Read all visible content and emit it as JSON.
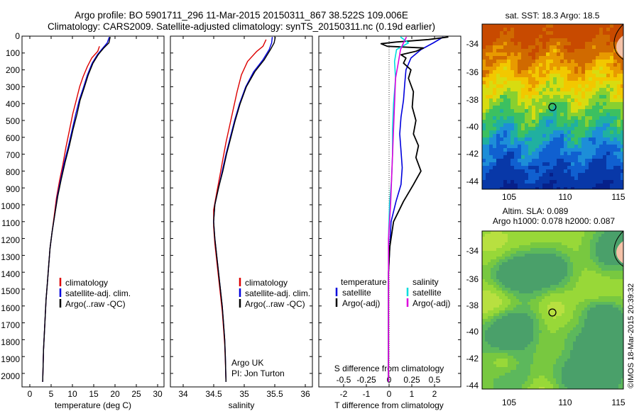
{
  "title": {
    "line1": "Argo profile: BO 5901711_296 11-Mar-2015 20150311_867 38.522S 109.006E",
    "line2": "Climatology: CARS2009. Satellite-adjusted climatology: synTS_20150311.nc (0.19d earlier)"
  },
  "depth_ticks": [
    "0",
    "100",
    "200",
    "300",
    "400",
    "500",
    "600",
    "700",
    "800",
    "900",
    "1000",
    "1100",
    "1200",
    "1300",
    "1400",
    "1500",
    "1600",
    "1700",
    "1800",
    "1900",
    "2000"
  ],
  "panels": {
    "temperature": {
      "xlabel": "temperature (deg C)",
      "xticks": [
        "0",
        "5",
        "10",
        "15",
        "20",
        "25",
        "30"
      ],
      "legend": [
        "climatology",
        "satellite-adj. clim.",
        "Argo(..raw -QC)"
      ]
    },
    "salinity": {
      "xlabel": "salinity",
      "xticks": [
        "34",
        "34.5",
        "35",
        "35.5",
        "36"
      ],
      "legend": [
        "climatology",
        "satellite-adj. clim.",
        "Argo(..raw -QC)"
      ],
      "note1": "Argo UK",
      "note2": "PI: Jon Turton"
    },
    "difference": {
      "xlabel_bottom": "T difference from climatology",
      "xlabel_top": "S difference from climatology",
      "xticks_t": [
        "-2",
        "-1",
        "0",
        "1",
        "2"
      ],
      "xticks_s": [
        "-0.5",
        "-0.25",
        "0",
        "0.25",
        "0.5"
      ],
      "legend_t_header": "temperature",
      "legend_t": [
        "satellite",
        "Argo(-adj)"
      ],
      "legend_s_header": "salinity",
      "legend_s": [
        "satellite",
        "Argo(-adj)"
      ]
    }
  },
  "maps": {
    "sst": {
      "title": "sat. SST: 18.3 Argo: 18.5",
      "yticks": [
        "-34",
        "-36",
        "-38",
        "-40",
        "-42",
        "-44"
      ],
      "xticks": [
        "105",
        "110",
        "115"
      ]
    },
    "sla": {
      "title1": "Altim. SLA: 0.089",
      "title2": "Argo h1000: 0.078 h2000: 0.087",
      "yticks": [
        "-34",
        "-36",
        "-38",
        "-40",
        "-42",
        "-44"
      ],
      "xticks": [
        "105",
        "110",
        "115"
      ]
    }
  },
  "credit": "©IMOS 18-Mar-2015 20:39:32",
  "colors": {
    "climatology": "#dd0000",
    "satellite": "#0000dd",
    "argo": "#000000",
    "sat_salinity": "#00dddd",
    "argo_salinity": "#dd00dd"
  },
  "chart_data": [
    {
      "type": "line",
      "title": "",
      "xlabel": "temperature (deg C)",
      "ylabel": "",
      "xlim": [
        -2,
        31
      ],
      "ylim": [
        2080,
        0
      ],
      "y_inverted": true,
      "legend": "bottom-right",
      "series": [
        {
          "name": "climatology",
          "color": "#dd0000",
          "points": [
            [
              16.0,
              60
            ],
            [
              15.6,
              90
            ],
            [
              14.2,
              130
            ],
            [
              13.2,
              180
            ],
            [
              12.2,
              240
            ],
            [
              11.4,
              300
            ],
            [
              10.6,
              380
            ],
            [
              9.8,
              460
            ],
            [
              9.0,
              560
            ],
            [
              8.2,
              660
            ],
            [
              7.5,
              760
            ],
            [
              6.7,
              860
            ],
            [
              6.0,
              960
            ],
            [
              5.5,
              1060
            ],
            [
              5.0,
              1160
            ],
            [
              4.5,
              1260
            ],
            [
              4.2,
              1360
            ],
            [
              3.9,
              1460
            ],
            [
              3.6,
              1560
            ],
            [
              3.4,
              1660
            ],
            [
              3.2,
              1760
            ],
            [
              3.0,
              1860
            ],
            [
              2.9,
              1960
            ],
            [
              2.8,
              2050
            ]
          ]
        },
        {
          "name": "satellite-adj. clim.",
          "color": "#0000dd",
          "points": [
            [
              18.3,
              5
            ],
            [
              17.8,
              40
            ],
            [
              16.8,
              70
            ],
            [
              15.5,
              110
            ],
            [
              14.3,
              160
            ],
            [
              13.2,
              230
            ],
            [
              12.2,
              310
            ],
            [
              11.3,
              380
            ],
            [
              10.5,
              460
            ],
            [
              9.7,
              550
            ],
            [
              8.8,
              650
            ],
            [
              7.8,
              750
            ],
            [
              7.0,
              850
            ],
            [
              6.2,
              950
            ],
            [
              5.6,
              1060
            ],
            [
              5.0,
              1160
            ],
            [
              4.5,
              1260
            ],
            [
              4.2,
              1360
            ],
            [
              3.9,
              1460
            ],
            [
              3.6,
              1560
            ],
            [
              3.4,
              1660
            ],
            [
              3.2,
              1760
            ],
            [
              3.0,
              1860
            ],
            [
              2.9,
              1960
            ],
            [
              2.8,
              2050
            ]
          ]
        },
        {
          "name": "Argo(..raw -QC)",
          "color": "#000000",
          "points": [
            [
              18.5,
              5
            ],
            [
              18.2,
              40
            ],
            [
              17.0,
              70
            ],
            [
              15.7,
              110
            ],
            [
              14.5,
              160
            ],
            [
              13.4,
              230
            ],
            [
              12.4,
              310
            ],
            [
              11.5,
              380
            ],
            [
              10.8,
              460
            ],
            [
              9.9,
              550
            ],
            [
              9.0,
              650
            ],
            [
              8.0,
              750
            ],
            [
              7.1,
              850
            ],
            [
              6.3,
              950
            ],
            [
              5.6,
              1060
            ],
            [
              5.0,
              1160
            ],
            [
              4.5,
              1260
            ],
            [
              4.2,
              1360
            ],
            [
              3.9,
              1460
            ],
            [
              3.6,
              1560
            ],
            [
              3.4,
              1660
            ],
            [
              3.2,
              1760
            ],
            [
              3.0,
              1860
            ],
            [
              2.9,
              1960
            ],
            [
              2.8,
              2050
            ]
          ]
        }
      ]
    },
    {
      "type": "line",
      "title": "",
      "xlabel": "salinity",
      "ylabel": "",
      "xlim": [
        33.8,
        36.1
      ],
      "ylim": [
        2080,
        0
      ],
      "y_inverted": true,
      "legend": "bottom-right",
      "series": [
        {
          "name": "climatology",
          "color": "#dd0000",
          "points": [
            [
              35.35,
              20
            ],
            [
              35.3,
              60
            ],
            [
              35.2,
              90
            ],
            [
              35.05,
              150
            ],
            [
              34.95,
              230
            ],
            [
              34.88,
              330
            ],
            [
              34.82,
              430
            ],
            [
              34.76,
              530
            ],
            [
              34.7,
              630
            ],
            [
              34.65,
              730
            ],
            [
              34.6,
              830
            ],
            [
              34.55,
              930
            ],
            [
              34.5,
              1030
            ],
            [
              34.5,
              1130
            ],
            [
              34.52,
              1230
            ],
            [
              34.55,
              1330
            ],
            [
              34.58,
              1430
            ],
            [
              34.61,
              1530
            ],
            [
              34.64,
              1630
            ],
            [
              34.66,
              1730
            ],
            [
              34.68,
              1830
            ],
            [
              34.69,
              1930
            ],
            [
              34.7,
              2050
            ]
          ]
        },
        {
          "name": "satellite-adj. clim.",
          "color": "#0000dd",
          "points": [
            [
              35.45,
              5
            ],
            [
              35.44,
              40
            ],
            [
              35.4,
              80
            ],
            [
              35.3,
              140
            ],
            [
              35.15,
              210
            ],
            [
              35.02,
              300
            ],
            [
              34.92,
              400
            ],
            [
              34.84,
              500
            ],
            [
              34.77,
              600
            ],
            [
              34.7,
              700
            ],
            [
              34.64,
              800
            ],
            [
              34.58,
              900
            ],
            [
              34.52,
              1000
            ],
            [
              34.5,
              1100
            ],
            [
              34.52,
              1200
            ],
            [
              34.55,
              1300
            ],
            [
              34.58,
              1400
            ],
            [
              34.61,
              1500
            ],
            [
              34.64,
              1600
            ],
            [
              34.66,
              1700
            ],
            [
              34.68,
              1800
            ],
            [
              34.69,
              1900
            ],
            [
              34.7,
              2050
            ]
          ]
        },
        {
          "name": "Argo(..raw -QC)",
          "color": "#000000",
          "points": [
            [
              35.5,
              5
            ],
            [
              35.48,
              40
            ],
            [
              35.42,
              80
            ],
            [
              35.32,
              140
            ],
            [
              35.17,
              210
            ],
            [
              35.03,
              300
            ],
            [
              34.93,
              400
            ],
            [
              34.85,
              500
            ],
            [
              34.78,
              600
            ],
            [
              34.71,
              700
            ],
            [
              34.65,
              800
            ],
            [
              34.58,
              900
            ],
            [
              34.52,
              1000
            ],
            [
              34.5,
              1100
            ],
            [
              34.52,
              1200
            ],
            [
              34.55,
              1300
            ],
            [
              34.58,
              1400
            ],
            [
              34.61,
              1500
            ],
            [
              34.64,
              1600
            ],
            [
              34.66,
              1700
            ],
            [
              34.68,
              1800
            ],
            [
              34.69,
              1900
            ],
            [
              34.7,
              2050
            ]
          ]
        }
      ]
    },
    {
      "type": "line",
      "title": "",
      "xlabel": "T difference from climatology",
      "ylabel": "",
      "xlim": [
        -2.8,
        2.9
      ],
      "ylim": [
        2080,
        0
      ],
      "y_inverted": true,
      "legend": "bottom-center",
      "series": [
        {
          "name": "satellite",
          "color": "#0000dd",
          "width": 1.6,
          "points": [
            [
              2.2,
              5
            ],
            [
              1.8,
              40
            ],
            [
              1.3,
              80
            ],
            [
              0.9,
              130
            ],
            [
              0.7,
              200
            ],
            [
              0.65,
              280
            ],
            [
              0.6,
              380
            ],
            [
              0.5,
              480
            ],
            [
              0.45,
              580
            ],
            [
              0.5,
              680
            ],
            [
              0.55,
              780
            ],
            [
              0.5,
              880
            ],
            [
              0.3,
              980
            ],
            [
              0.1,
              1100
            ],
            [
              0.05,
              1250
            ],
            [
              0.0,
              1400
            ],
            [
              0.0,
              1600
            ],
            [
              0.0,
              1800
            ],
            [
              0.0,
              2050
            ]
          ]
        },
        {
          "name": "Argo(-adj)",
          "color": "#000000",
          "width": 1.8,
          "points": [
            [
              2.4,
              5
            ],
            [
              1.6,
              20
            ],
            [
              0.3,
              35
            ],
            [
              -0.3,
              45
            ],
            [
              -0.05,
              60
            ],
            [
              1.4,
              70
            ],
            [
              1.1,
              90
            ],
            [
              0.5,
              110
            ],
            [
              0.7,
              130
            ],
            [
              0.6,
              160
            ],
            [
              0.9,
              200
            ],
            [
              0.8,
              250
            ],
            [
              1.0,
              330
            ],
            [
              0.95,
              420
            ],
            [
              1.1,
              500
            ],
            [
              1.0,
              580
            ],
            [
              1.2,
              650
            ],
            [
              1.1,
              720
            ],
            [
              1.3,
              800
            ],
            [
              1.0,
              880
            ],
            [
              0.6,
              980
            ],
            [
              0.2,
              1100
            ],
            [
              0.05,
              1250
            ],
            [
              0.0,
              1400
            ],
            [
              0.0,
              1600
            ],
            [
              0.0,
              1800
            ],
            [
              0.0,
              2050
            ]
          ]
        }
      ]
    },
    {
      "type": "line",
      "title": "",
      "xlabel": "S difference from climatology",
      "ylabel": "",
      "xlim": [
        -0.7,
        0.725
      ],
      "ylim": [
        2080,
        0
      ],
      "y_inverted": true,
      "series": [
        {
          "name": "satellite",
          "color": "#00dddd",
          "width": 1.6,
          "points": [
            [
              0.12,
              5
            ],
            [
              0.2,
              40
            ],
            [
              0.08,
              80
            ],
            [
              0.06,
              150
            ],
            [
              0.07,
              250
            ],
            [
              0.05,
              400
            ],
            [
              0.04,
              550
            ],
            [
              0.04,
              700
            ],
            [
              0.03,
              850
            ],
            [
              0.01,
              1000
            ],
            [
              0.0,
              1200
            ],
            [
              0.0,
              1500
            ],
            [
              0.0,
              1800
            ],
            [
              0.0,
              2050
            ]
          ]
        },
        {
          "name": "Argo(-adj)",
          "color": "#dd00dd",
          "width": 1.6,
          "points": [
            [
              0.18,
              5
            ],
            [
              0.15,
              40
            ],
            [
              0.12,
              80
            ],
            [
              0.1,
              150
            ],
            [
              0.07,
              250
            ],
            [
              0.06,
              400
            ],
            [
              0.05,
              550
            ],
            [
              0.04,
              700
            ],
            [
              0.03,
              850
            ],
            [
              0.02,
              1000
            ],
            [
              0.0,
              1200
            ],
            [
              0.0,
              1500
            ],
            [
              0.0,
              1800
            ],
            [
              0.0,
              2050
            ]
          ]
        }
      ]
    }
  ]
}
